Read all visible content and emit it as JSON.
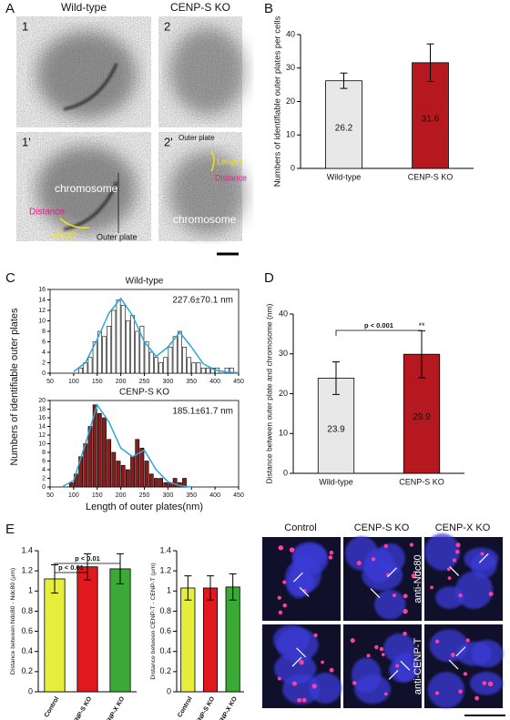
{
  "figure": {
    "panels": [
      "A",
      "B",
      "C",
      "D",
      "E"
    ],
    "em": {
      "columns": [
        "Wild-type",
        "CENP-S KO"
      ],
      "tiles": [
        "1",
        "2",
        "1'",
        "2'"
      ],
      "tile_1p": [
        "chromosome",
        "Distance",
        "Length",
        "Outer plate"
      ],
      "tile_2p": [
        "Outer plate",
        "Length",
        "Distance",
        "chromosome"
      ]
    },
    "fluorescence": {
      "columns": [
        "Control",
        "CENP-S KO",
        "CENP-X KO"
      ],
      "rows": [
        "anti-Ndc80",
        "anti-CENP-T"
      ]
    }
  },
  "chart_data": [
    {
      "type": "bar",
      "ylabel": "Numbers of identifiable outer plates per cells",
      "categories": [
        "Wild-type",
        "CENP-S KO"
      ],
      "values": [
        26.2,
        31.6
      ],
      "errors": [
        2.3,
        5.6
      ],
      "colors": [
        "#e8e8e8",
        "#b5191f"
      ],
      "show_values": true,
      "ylim": [
        0,
        40
      ],
      "yticks": [
        0,
        10,
        20,
        30,
        40
      ]
    },
    {
      "type": "histogram",
      "title": "Wild-type",
      "annotation": "227.6±70.1 nm",
      "ylabel": "Numbers of identifiable outer plates",
      "color": "#ffffff",
      "bins": [
        110,
        120,
        130,
        140,
        150,
        160,
        170,
        180,
        190,
        200,
        210,
        220,
        230,
        240,
        250,
        260,
        270,
        280,
        290,
        300,
        310,
        320,
        330,
        340,
        350,
        360,
        370,
        380,
        390,
        400,
        410,
        420,
        430,
        440
      ],
      "values": [
        1,
        2,
        3,
        6,
        8,
        7,
        9,
        12,
        14,
        13,
        10,
        11,
        8,
        9,
        6,
        4,
        3,
        2,
        3,
        5,
        7,
        8,
        5,
        3,
        2,
        2,
        1,
        1,
        1,
        1,
        0,
        1,
        1
      ],
      "fit": {
        "color": "#2aa7d6",
        "x": [
          100,
          125,
          150,
          175,
          200,
          225,
          250,
          275,
          300,
          325,
          350,
          375,
          400,
          425,
          450
        ],
        "values": [
          0.3,
          2,
          6.5,
          11.5,
          14.3,
          11,
          6,
          3.2,
          5,
          7.8,
          5,
          1.8,
          0.6,
          0.2,
          0.1
        ]
      },
      "xlim": [
        50,
        450
      ],
      "xticks": [
        50,
        100,
        150,
        200,
        250,
        300,
        350,
        400,
        450
      ],
      "ylim": [
        0,
        16
      ],
      "yticks": [
        0,
        2,
        4,
        6,
        8,
        10,
        12,
        14,
        16
      ]
    },
    {
      "type": "histogram",
      "title": "CENP-S KO",
      "annotation": "185.1±61.7 nm",
      "xlabel": "Length of outer plates(nm)",
      "color": "#8b1c1c",
      "bins": [
        90,
        100,
        110,
        120,
        130,
        140,
        150,
        160,
        170,
        180,
        190,
        200,
        210,
        220,
        230,
        240,
        250,
        260,
        270,
        280,
        290,
        300,
        310,
        320,
        330,
        340,
        350
      ],
      "values": [
        1,
        3,
        7,
        10,
        14,
        19,
        17,
        16,
        11,
        8,
        6,
        5,
        4,
        7,
        11,
        9,
        6,
        3,
        2,
        2,
        1,
        1,
        2,
        1,
        2,
        0
      ],
      "fit": {
        "color": "#2aa7d6",
        "x": [
          75,
          100,
          125,
          150,
          175,
          200,
          225,
          250,
          275,
          300,
          325,
          350
        ],
        "values": [
          0,
          1.5,
          10,
          19,
          15,
          9,
          7,
          8.5,
          4,
          1.2,
          0.3,
          0
        ]
      },
      "xlim": [
        50,
        450
      ],
      "xticks": [
        50,
        100,
        150,
        200,
        250,
        300,
        350,
        400,
        450
      ],
      "ylim": [
        0,
        20
      ],
      "yticks": [
        0,
        2,
        4,
        6,
        8,
        10,
        12,
        14,
        16,
        18,
        20
      ]
    },
    {
      "type": "bar",
      "ylabel": "Distance between outer plate and chromosome (nm)",
      "categories": [
        "Wild-type",
        "CENP-S KO"
      ],
      "values": [
        23.9,
        29.9
      ],
      "errors": [
        4.1,
        5.9
      ],
      "colors": [
        "#e8e8e8",
        "#b5191f"
      ],
      "show_values": true,
      "annotations": [
        "p < 0.001"
      ],
      "significance": "**",
      "ylim": [
        0,
        40
      ],
      "yticks": [
        0,
        10,
        20,
        30,
        40
      ]
    },
    {
      "type": "bar",
      "ylabel": "Distance between Ndc80 - Ndc80 (μm)",
      "categories": [
        "Control",
        "CENP-S KO",
        "CENP-X KO"
      ],
      "values": [
        1.12,
        1.24,
        1.22
      ],
      "errors": [
        0.14,
        0.13,
        0.15
      ],
      "colors": [
        "#e6ee3c",
        "#e0191e",
        "#3aa935"
      ],
      "show_values": false,
      "annotations": [
        "p < 0.01",
        "p < 0.01"
      ],
      "ylim": [
        0,
        1.4
      ],
      "yticks": [
        0,
        0.2,
        0.4,
        0.6,
        0.8,
        1,
        1.2,
        1.4
      ]
    },
    {
      "type": "bar",
      "ylabel": "Distance between CENP-T - CENP-T (μm)",
      "categories": [
        "Control",
        "CENP-S KO",
        "CENP-X KO"
      ],
      "values": [
        1.03,
        1.03,
        1.04
      ],
      "errors": [
        0.12,
        0.12,
        0.13
      ],
      "colors": [
        "#e6ee3c",
        "#e0191e",
        "#3aa935"
      ],
      "show_values": false,
      "ylim": [
        0,
        1.4
      ],
      "yticks": [
        0,
        0.2,
        0.4,
        0.6,
        0.8,
        1,
        1.2,
        1.4
      ]
    }
  ]
}
